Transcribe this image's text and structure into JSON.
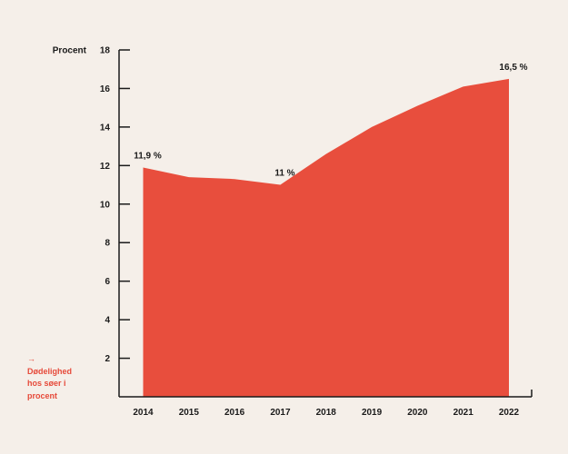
{
  "chart_data": {
    "type": "area",
    "x": [
      "2014",
      "2015",
      "2016",
      "2017",
      "2018",
      "2019",
      "2020",
      "2021",
      "2022"
    ],
    "series": [
      {
        "values": [
          11.9,
          11.4,
          11.3,
          11.0,
          12.6,
          14.0,
          15.1,
          16.1,
          16.5
        ]
      }
    ],
    "ylabel": "Procent",
    "ylim": [
      0,
      18
    ],
    "yticks": [
      2,
      4,
      6,
      8,
      10,
      12,
      14,
      16,
      18
    ],
    "color": "#e84e3d",
    "grid": false,
    "annotations": [
      {
        "x": "2014",
        "text": "11,9 %"
      },
      {
        "x": "2017",
        "text": "11 %"
      },
      {
        "x": "2022",
        "text": "16,5 %"
      }
    ]
  },
  "note": {
    "arrow": "→",
    "lines": [
      "Dødelighed",
      "hos søer i",
      "procent"
    ],
    "color": "#e64a3a"
  }
}
